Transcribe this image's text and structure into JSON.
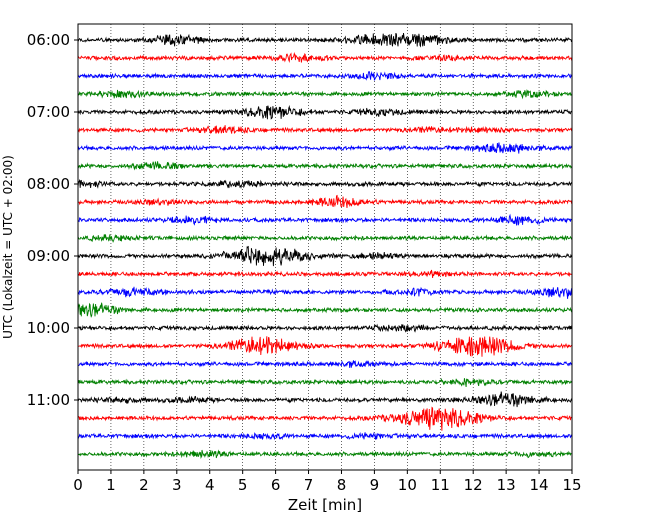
{
  "chart_data": {
    "type": "line",
    "title": "",
    "xlabel": "Zeit  [min]",
    "ylabel": "UTC (Lokalzeit = UTC + 02:00)",
    "xlim": [
      0,
      15
    ],
    "x_ticks": [
      "0",
      "1",
      "2",
      "3",
      "4",
      "5",
      "6",
      "7",
      "8",
      "9",
      "10",
      "11",
      "12",
      "13",
      "14",
      "15"
    ],
    "grid": "vertical dotted",
    "trace_interval_min": 15,
    "y_tick_labels": [
      "06:00",
      "07:00",
      "08:00",
      "09:00",
      "10:00",
      "11:00"
    ],
    "colors": [
      "#000000",
      "#ff0000",
      "#0000ff",
      "#008000"
    ],
    "series": [
      {
        "start": "06:00",
        "color": "#000000",
        "events": [
          [
            3.0,
            5
          ],
          [
            8.8,
            4
          ],
          [
            10.0,
            6
          ],
          [
            11.1,
            2
          ]
        ]
      },
      {
        "start": "06:15",
        "color": "#ff0000",
        "events": [
          [
            6.7,
            3
          ],
          [
            11.2,
            2
          ]
        ]
      },
      {
        "start": "06:30",
        "color": "#0000ff",
        "events": [
          [
            9.0,
            3
          ]
        ]
      },
      {
        "start": "06:45",
        "color": "#008000",
        "events": [
          [
            1.4,
            3
          ],
          [
            13.7,
            3
          ]
        ]
      },
      {
        "start": "07:00",
        "color": "#000000",
        "events": [
          [
            5.9,
            6
          ],
          [
            9.2,
            3
          ]
        ]
      },
      {
        "start": "07:15",
        "color": "#ff0000",
        "events": [
          [
            4.4,
            3
          ],
          [
            10.6,
            2
          ],
          [
            12.2,
            2
          ]
        ]
      },
      {
        "start": "07:30",
        "color": "#0000ff",
        "events": [
          [
            13.0,
            5
          ]
        ]
      },
      {
        "start": "07:45",
        "color": "#008000",
        "events": [
          [
            2.4,
            3
          ]
        ]
      },
      {
        "start": "08:00",
        "color": "#000000",
        "events": [
          [
            0.1,
            3
          ],
          [
            4.8,
            3
          ]
        ]
      },
      {
        "start": "08:15",
        "color": "#ff0000",
        "events": [
          [
            7.9,
            5
          ],
          [
            2.5,
            2
          ]
        ]
      },
      {
        "start": "08:30",
        "color": "#0000ff",
        "events": [
          [
            3.5,
            3
          ],
          [
            13.4,
            4
          ]
        ]
      },
      {
        "start": "08:45",
        "color": "#008000",
        "events": [
          [
            1.0,
            2
          ]
        ]
      },
      {
        "start": "09:00",
        "color": "#000000",
        "events": [
          [
            5.7,
            11
          ],
          [
            9.1,
            2
          ]
        ]
      },
      {
        "start": "09:15",
        "color": "#ff0000",
        "events": [
          [
            10.8,
            2
          ]
        ]
      },
      {
        "start": "09:30",
        "color": "#0000ff",
        "events": [
          [
            1.7,
            4
          ],
          [
            10.3,
            3
          ],
          [
            14.8,
            5
          ]
        ]
      },
      {
        "start": "09:45",
        "color": "#008000",
        "events": [
          [
            0.3,
            7
          ]
        ]
      },
      {
        "start": "10:00",
        "color": "#000000",
        "events": [
          [
            9.8,
            3
          ]
        ]
      },
      {
        "start": "10:15",
        "color": "#ff0000",
        "events": [
          [
            5.6,
            9
          ],
          [
            12.1,
            11
          ]
        ]
      },
      {
        "start": "10:30",
        "color": "#0000ff",
        "events": [
          [
            8.3,
            2
          ]
        ]
      },
      {
        "start": "10:45",
        "color": "#008000",
        "events": [
          [
            11.8,
            3
          ]
        ]
      },
      {
        "start": "11:00",
        "color": "#000000",
        "events": [
          [
            13.0,
            7
          ],
          [
            1.4,
            2
          ],
          [
            3.4,
            2
          ]
        ]
      },
      {
        "start": "11:15",
        "color": "#ff0000",
        "events": [
          [
            10.9,
            12
          ]
        ]
      },
      {
        "start": "11:30",
        "color": "#0000ff",
        "events": [
          [
            5.6,
            2
          ],
          [
            8.8,
            2
          ]
        ]
      },
      {
        "start": "11:45",
        "color": "#008000",
        "events": [
          [
            3.8,
            3
          ],
          [
            13.8,
            2
          ]
        ]
      }
    ]
  }
}
